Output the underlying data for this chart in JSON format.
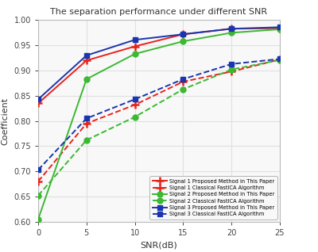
{
  "title": "The separation performance under different SNR",
  "xlabel": "SNR(dB)",
  "ylabel": "Coefficient",
  "xlim": [
    0,
    25
  ],
  "ylim": [
    0.6,
    1.0
  ],
  "xticks": [
    0,
    5,
    10,
    15,
    20,
    25
  ],
  "yticks": [
    0.6,
    0.65,
    0.7,
    0.75,
    0.8,
    0.85,
    0.9,
    0.95,
    1.0
  ],
  "snr": [
    0,
    5,
    10,
    15,
    20,
    25
  ],
  "signal1_proposed": [
    0.835,
    0.92,
    0.948,
    0.972,
    0.983,
    0.984
  ],
  "signal1_classical": [
    0.68,
    0.795,
    0.832,
    0.878,
    0.898,
    0.922
  ],
  "signal2_proposed": [
    0.605,
    0.883,
    0.933,
    0.958,
    0.975,
    0.982
  ],
  "signal2_classical": [
    0.652,
    0.762,
    0.808,
    0.863,
    0.902,
    0.921
  ],
  "signal3_proposed": [
    0.843,
    0.93,
    0.961,
    0.972,
    0.983,
    0.986
  ],
  "signal3_classical": [
    0.703,
    0.805,
    0.843,
    0.883,
    0.913,
    0.923
  ],
  "color_red": "#e8231a",
  "color_green": "#3cb832",
  "color_blue": "#1a35b0",
  "plot_bg": "#f8f8f8",
  "fig_bg": "#ffffff",
  "grid_color": "#e0e0e0"
}
